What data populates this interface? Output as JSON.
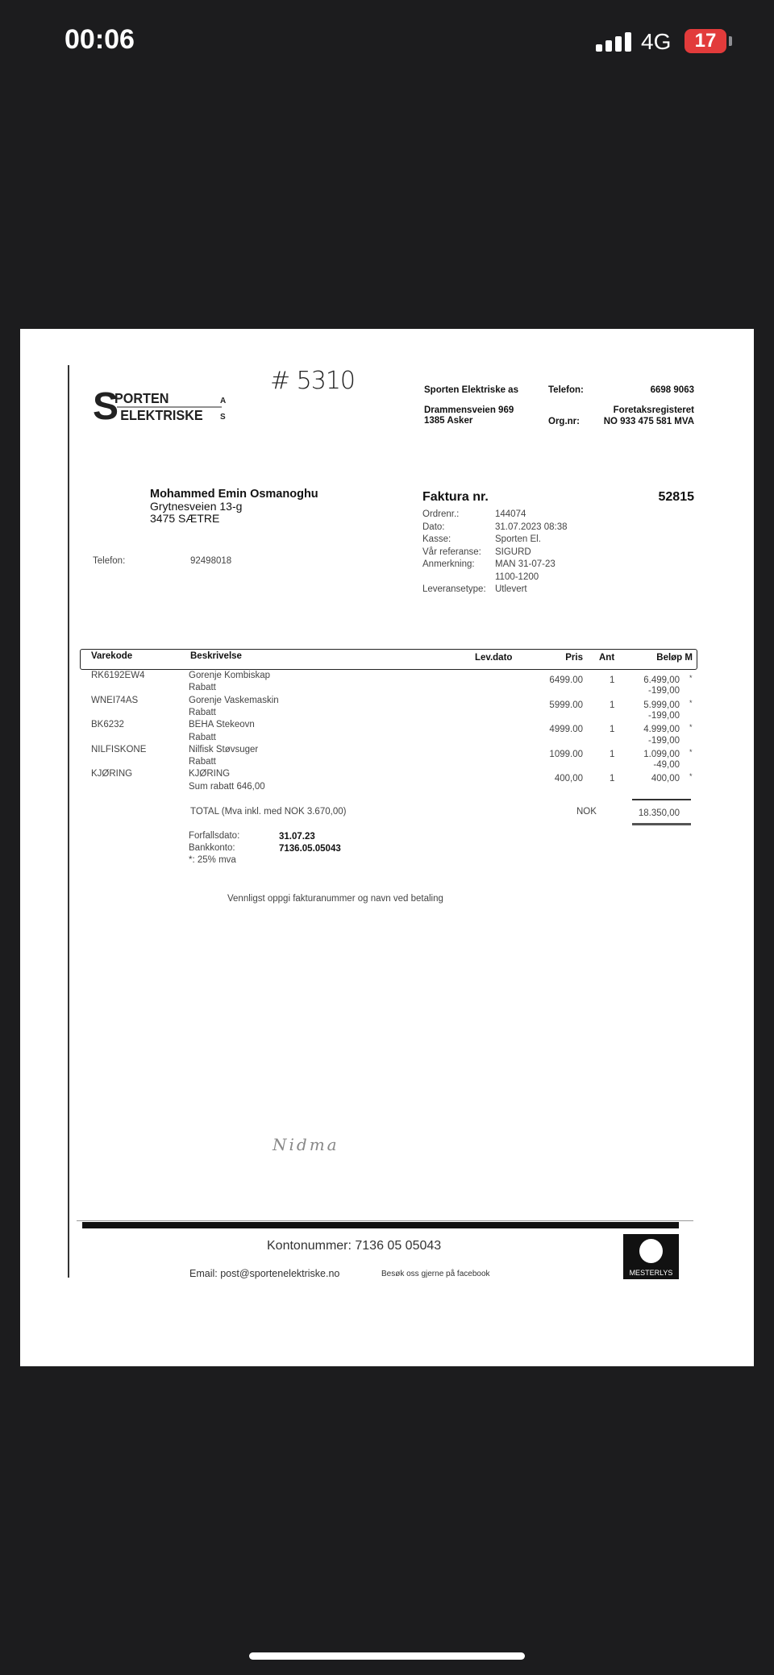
{
  "status_bar": {
    "time": "00:06",
    "network": "4G",
    "battery": "17"
  },
  "invoice": {
    "handwritten_number": "# 5310",
    "logo_text": "SPORTEN ELEKTRISKE AS",
    "company": {
      "name": "Sporten Elektriske as",
      "address1": "Drammensveien 969",
      "address2": "1385 Asker",
      "phone_label": "Telefon:",
      "phone": "6698 9063",
      "register": "Foretaksregisteret",
      "org_label": "Org.nr:",
      "org": "NO 933 475 581 MVA"
    },
    "customer": {
      "name": "Mohammed Emin Osmanoghu",
      "street": "Grytnesveien 13-g",
      "city": "3475 SÆTRE",
      "phone_label": "Telefon:",
      "phone": "92498018"
    },
    "faktura_label": "Faktura nr.",
    "faktura_nr": "52815",
    "meta": [
      {
        "label": "Ordrenr.:",
        "value": "144074"
      },
      {
        "label": "Dato:",
        "value": "31.07.2023 08:38"
      },
      {
        "label": "Kasse:",
        "value": "Sporten El."
      },
      {
        "label": "Vår referanse:",
        "value": "SIGURD"
      },
      {
        "label": "Anmerkning:",
        "value": "MAN 31-07-23"
      },
      {
        "label": "",
        "value": "1100-1200"
      },
      {
        "label": "Leveransetype:",
        "value": "Utlevert"
      }
    ],
    "table": {
      "headers": {
        "code": "Varekode",
        "desc": "Beskrivelse",
        "date": "Lev.dato",
        "price": "Pris",
        "qty": "Ant",
        "amount": "Beløp M"
      },
      "rows": [
        {
          "code": "RK6192EW4",
          "desc": "Gorenje Kombiskap",
          "price": "6499.00",
          "qty": "1",
          "amount": "6.499,00",
          "mark": "*"
        },
        {
          "code": "",
          "desc": "Rabatt",
          "price": "",
          "qty": "",
          "amount": "-199,00",
          "mark": ""
        },
        {
          "code": "WNEI74AS",
          "desc": "Gorenje Vaskemaskin",
          "price": "5999.00",
          "qty": "1",
          "amount": "5.999,00",
          "mark": "*"
        },
        {
          "code": "",
          "desc": "Rabatt",
          "price": "",
          "qty": "",
          "amount": "-199,00",
          "mark": ""
        },
        {
          "code": "BK6232",
          "desc": "BEHA Stekeovn",
          "price": "4999.00",
          "qty": "1",
          "amount": "4.999,00",
          "mark": "*"
        },
        {
          "code": "",
          "desc": "Rabatt",
          "price": "",
          "qty": "",
          "amount": "-199,00",
          "mark": ""
        },
        {
          "code": "NILFISKONE",
          "desc": "Nilfisk Støvsuger",
          "price": "1099.00",
          "qty": "1",
          "amount": "1.099,00",
          "mark": "*"
        },
        {
          "code": "",
          "desc": "Rabatt",
          "price": "",
          "qty": "",
          "amount": "-49,00",
          "mark": ""
        },
        {
          "code": "KJØRING",
          "desc": "KJØRING",
          "price": "400,00",
          "qty": "1",
          "amount": "400,00",
          "mark": "*"
        },
        {
          "code": "",
          "desc": "Sum rabatt 646,00",
          "price": "",
          "qty": "",
          "amount": "",
          "mark": ""
        }
      ]
    },
    "total": {
      "label": "TOTAL (Mva inkl. med NOK 3.670,00)",
      "currency": "NOK",
      "amount": "18.350,00"
    },
    "due": {
      "due_label": "Forfallsdato:",
      "due_value": "31.07.23",
      "bank_label": "Bankkonto:",
      "bank_value": "7136.05.05043",
      "vat_note": "*: 25% mva"
    },
    "payment_note": "Vennligst oppgi fakturanummer og navn ved betaling",
    "signature": "Nidma",
    "footer": {
      "account": "Kontonummer: 7136 05 05043",
      "email": "Email: post@sportenelektriske.no",
      "facebook": "Besøk oss gjerne på facebook",
      "badge": "MESTERLYS"
    }
  }
}
